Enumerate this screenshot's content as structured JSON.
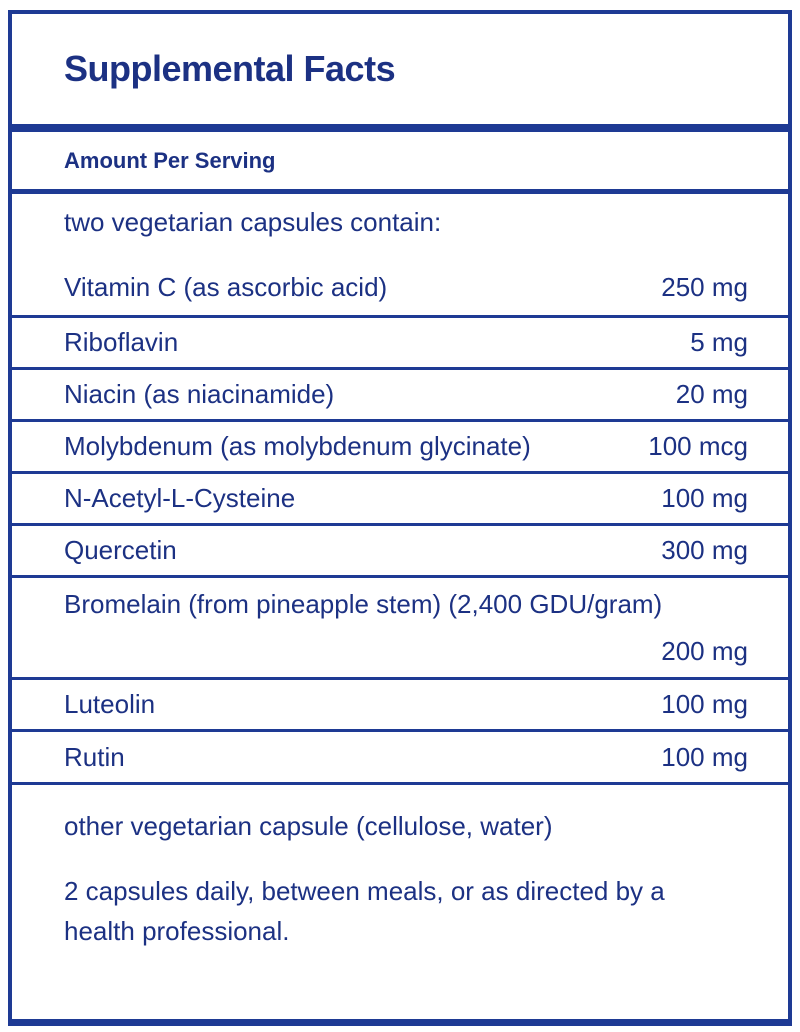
{
  "colors": {
    "line_navy": "#1e3a94",
    "text_navy": "#1c3183",
    "page_bg": "#ffffff"
  },
  "header": {
    "title": "Supplemental Facts",
    "column_label": "Amount Per Serving"
  },
  "table": {
    "serving_note": "two vegetarian capsules contain:",
    "rows": [
      {
        "name": "Vitamin C (as ascorbic acid)",
        "amount": "250 mg"
      },
      {
        "name": "Riboflavin",
        "amount": "5 mg"
      },
      {
        "name": "Niacin (as niacinamide)",
        "amount": "20 mg"
      },
      {
        "name": "Molybdenum (as molybdenum glycinate)",
        "amount": "100 mcg"
      },
      {
        "name": "N-Acetyl-L-Cysteine",
        "amount": "100 mg"
      },
      {
        "name": "Quercetin",
        "amount": "300 mg"
      },
      {
        "name": "Bromelain (from pineapple stem) (2,400 GDU/gram)",
        "amount": "200 mg"
      },
      {
        "name": "Luteolin",
        "amount": "100 mg"
      },
      {
        "name": "Rutin",
        "amount": "100 mg"
      }
    ]
  },
  "footer": {
    "other_ingredients": "other vegetarian capsule (cellulose, water)",
    "directions": "2 capsules daily, between meals, or as directed by a health professional."
  }
}
